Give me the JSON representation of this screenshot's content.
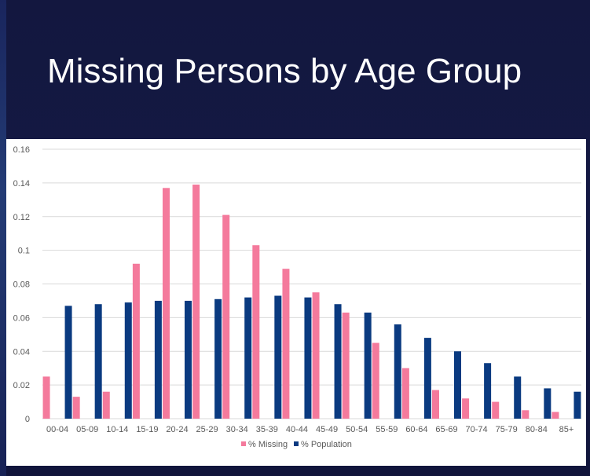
{
  "slide": {
    "title": "Missing Persons by Age Group"
  },
  "colors": {
    "background": "#13173f",
    "missing": "#f47a9c",
    "population": "#0a3a80",
    "grid": "#d9d9d9"
  },
  "chart_data": {
    "type": "bar",
    "title": "",
    "xlabel": "",
    "ylabel": "",
    "ylim": [
      0,
      0.16
    ],
    "y_ticks": [
      "0",
      "0.02",
      "0.04",
      "0.06",
      "0.08",
      "0.1",
      "0.12",
      "0.14",
      "0.16"
    ],
    "grid": true,
    "legend_position": "bottom",
    "categories": [
      "00-04",
      "05-09",
      "10-14",
      "15-19",
      "20-24",
      "25-29",
      "30-34",
      "35-39",
      "40-44",
      "45-49",
      "50-54",
      "55-59",
      "60-64",
      "65-69",
      "70-74",
      "75-79",
      "80-84",
      "85+"
    ],
    "series": [
      {
        "name": "% Missing",
        "color": "#f47a9c",
        "values": [
          0.025,
          0.013,
          0.016,
          0.092,
          0.137,
          0.139,
          0.121,
          0.103,
          0.089,
          0.075,
          0.063,
          0.045,
          0.03,
          0.017,
          0.012,
          0.01,
          0.005,
          0.004
        ]
      },
      {
        "name": "% Population",
        "color": "#0a3a80",
        "values": [
          0.067,
          0.068,
          0.069,
          0.07,
          0.07,
          0.071,
          0.072,
          0.073,
          0.072,
          0.068,
          0.063,
          0.056,
          0.048,
          0.04,
          0.033,
          0.025,
          0.018,
          0.016
        ]
      }
    ]
  }
}
